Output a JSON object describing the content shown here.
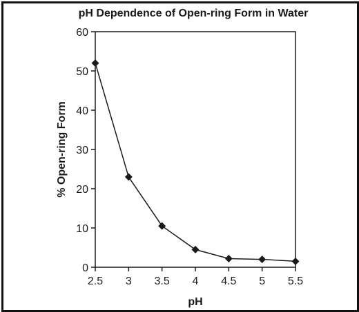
{
  "chart_data": {
    "type": "line",
    "title": "pH Dependence of Open-ring Form in Water",
    "xlabel": "pH",
    "ylabel": "% Open-ring Form",
    "x_ticks": [
      "2.5",
      "3",
      "3.5",
      "4",
      "4.5",
      "5",
      "5.5"
    ],
    "y_ticks": [
      "0",
      "10",
      "20",
      "30",
      "40",
      "50",
      "60"
    ],
    "xlim": [
      2.5,
      5.5
    ],
    "ylim": [
      0,
      60
    ],
    "grid": false,
    "marker": "diamond",
    "series": [
      {
        "x": [
          2.5,
          3,
          3.5,
          4,
          4.5,
          5,
          5.5
        ],
        "y": [
          52,
          23,
          10.5,
          4.5,
          2.2,
          2,
          1.5
        ]
      }
    ]
  }
}
